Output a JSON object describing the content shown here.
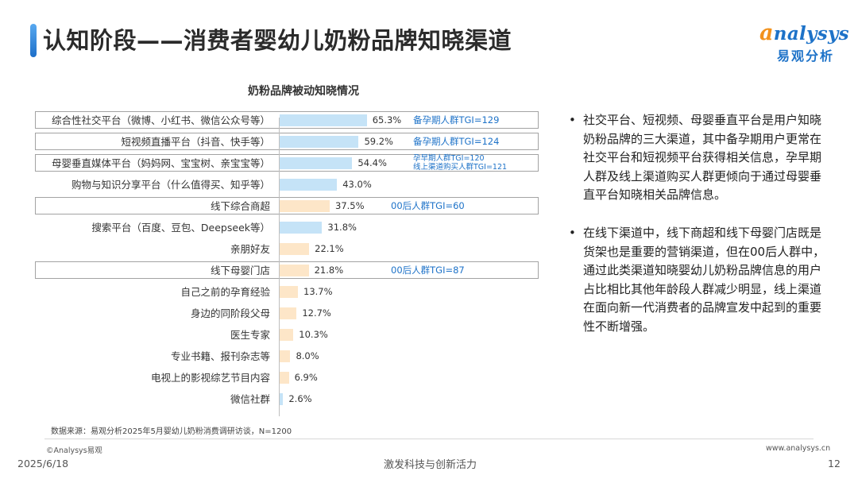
{
  "header": {
    "title": "认知阶段——消费者婴幼儿奶粉品牌知晓渠道",
    "logo_mark": "a",
    "logo_word": "nalysys",
    "logo_sub": "易观分析"
  },
  "chart_data": {
    "type": "bar",
    "orientation": "horizontal",
    "title": "奶粉品牌被动知晓情况",
    "categories": [
      "综合性社交平台（微博、小红书、微信公众号等）",
      "短视频直播平台（抖音、快手等）",
      "母婴垂直媒体平台（妈妈网、宝宝树、亲宝宝等）",
      "购物与知识分享平台（什么值得买、知乎等）",
      "线下综合商超",
      "搜索平台（百度、豆包、Deepseek等）",
      "亲朋好友",
      "线下母婴门店",
      "自己之前的孕育经验",
      "身边的同阶段父母",
      "医生专家",
      "专业书籍、报刊杂志等",
      "电视上的影视综艺节目内容",
      "微信社群"
    ],
    "values": [
      65.3,
      59.2,
      54.4,
      43.0,
      37.5,
      31.8,
      22.1,
      21.8,
      13.7,
      12.7,
      10.3,
      8.0,
      6.9,
      2.6
    ],
    "value_labels": [
      "65.3%",
      "59.2%",
      "54.4%",
      "43.0%",
      "37.5%",
      "31.8%",
      "22.1%",
      "21.8%",
      "13.7%",
      "12.7%",
      "10.3%",
      "8.0%",
      "6.9%",
      "2.6%"
    ],
    "bar_groups": [
      "online",
      "online",
      "online",
      "online",
      "offline",
      "online",
      "offline",
      "offline",
      "offline",
      "offline",
      "offline",
      "offline",
      "offline",
      "online"
    ],
    "group_colors": {
      "online": "#c5e3f7",
      "offline": "#fde6c8"
    },
    "highlighted": [
      true,
      true,
      true,
      false,
      true,
      false,
      false,
      true,
      false,
      false,
      false,
      false,
      false,
      false
    ],
    "annotations": [
      {
        "row": 0,
        "lines": [
          "备孕期人群TGI=129"
        ]
      },
      {
        "row": 1,
        "lines": [
          "备孕期人群TGI=124"
        ]
      },
      {
        "row": 2,
        "lines": [
          "孕早期人群TGI=120",
          "线上渠道购买人群TGI=121"
        ]
      },
      {
        "row": 4,
        "lines": [
          "00后人群TGI=60"
        ]
      },
      {
        "row": 7,
        "lines": [
          "00后人群TGI=87"
        ]
      }
    ],
    "annotation_color": "#1d72c8",
    "xlim": [
      0,
      100
    ],
    "grid": false,
    "legend": "none"
  },
  "source": "数据来源：易观分析2025年5月婴幼儿奶粉消费调研访谈，N=1200",
  "bullets": [
    "社交平台、短视频、母婴垂直平台是用户知晓奶粉品牌的三大渠道，其中备孕期用户更常在社交平台和短视频平台获得相关信息，孕早期人群及线上渠道购买人群更倾向于通过母婴垂直平台知晓相关品牌信息。",
    "在线下渠道中，线下商超和线下母婴门店既是货架也是重要的营销渠道，但在00后人群中，通过此类渠道知晓婴幼儿奶粉品牌信息的用户占比相比其他年龄段人群减少明显，线上渠道在面向新一代消费者的品牌宣发中起到的重要性不断增强。"
  ],
  "bullet_mark": "•",
  "footer": {
    "copyright": "©Analysys易观",
    "site": "www.analysys.cn",
    "date": "2025/6/18",
    "slogan": "激发科技与创新活力",
    "page": "12"
  }
}
